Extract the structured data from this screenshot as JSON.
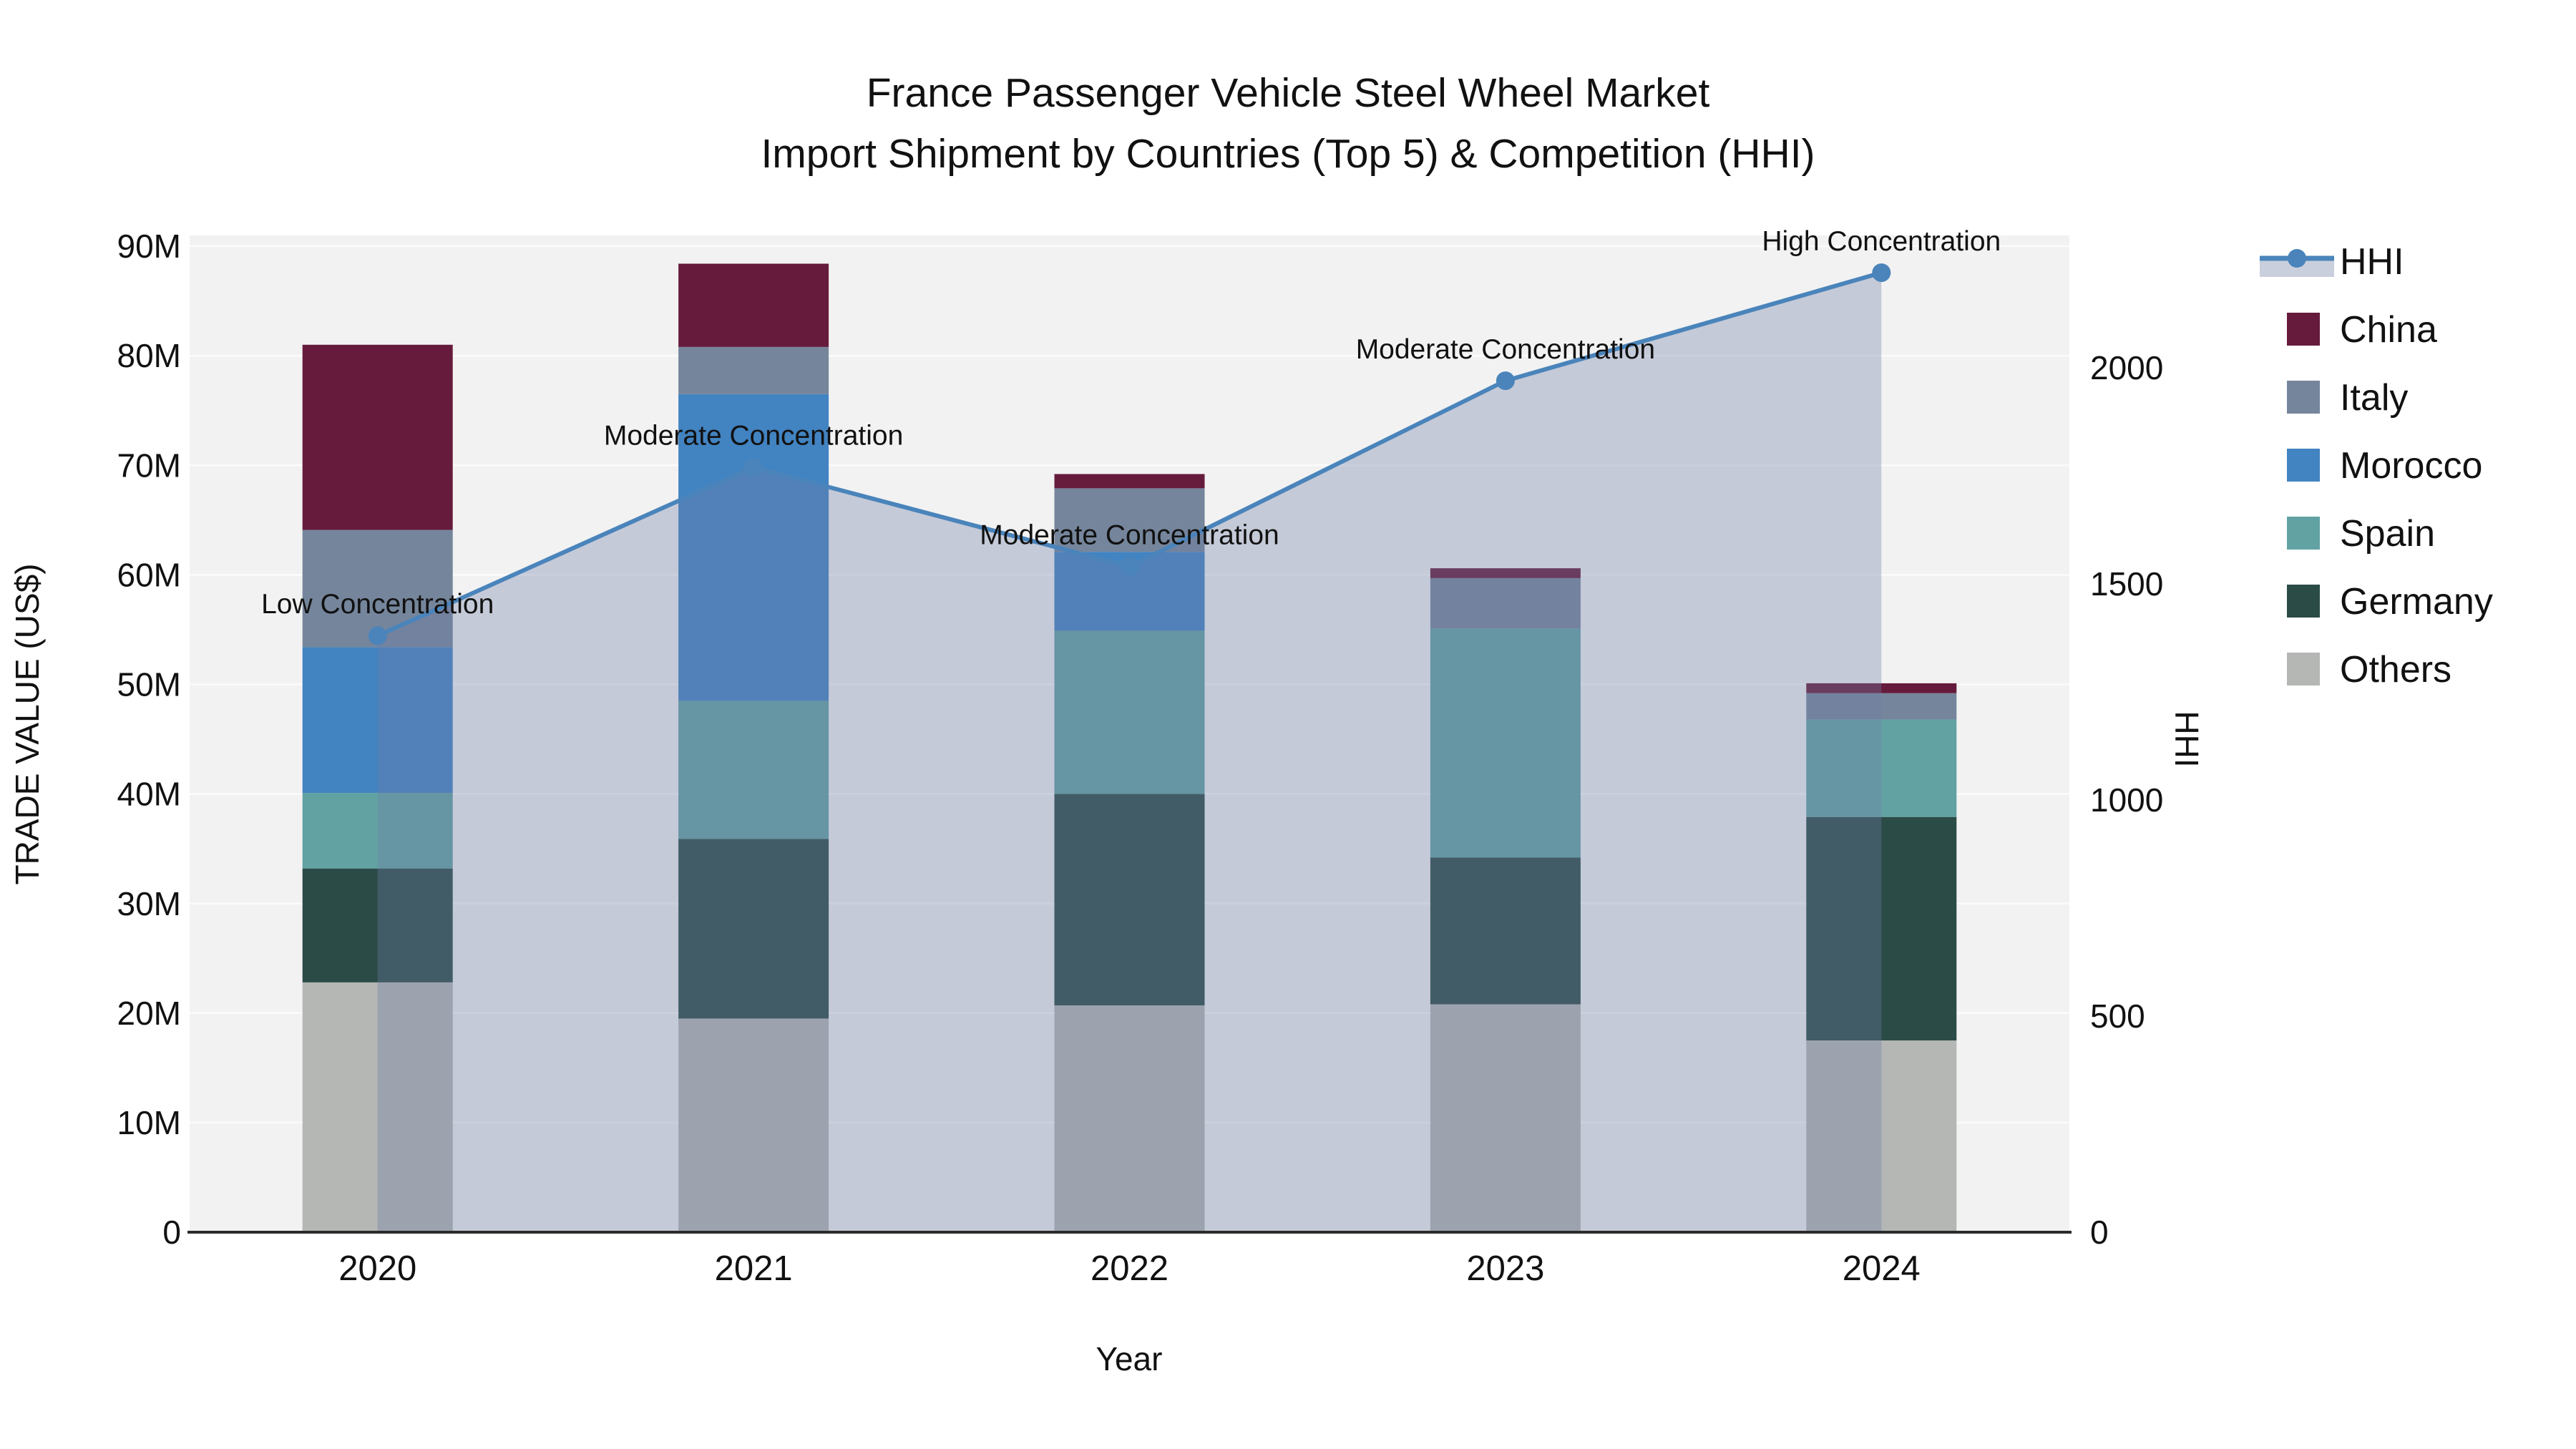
{
  "title": {
    "line1": "France Passenger Vehicle Steel Wheel Market",
    "line2": "Import Shipment by Countries (Top 5) & Competition (HHI)"
  },
  "axes": {
    "left": {
      "title": "TRADE VALUE (US$)",
      "tick_labels": [
        "0",
        "10M",
        "20M",
        "30M",
        "40M",
        "50M",
        "60M",
        "70M",
        "80M",
        "90M"
      ],
      "tick_values_millions": [
        0,
        10,
        20,
        30,
        40,
        50,
        60,
        70,
        80,
        90
      ]
    },
    "right": {
      "title": "HHI",
      "tick_labels": [
        "0",
        "500",
        "1000",
        "1500",
        "2000"
      ],
      "tick_values": [
        0,
        500,
        1000,
        1500,
        2000
      ]
    },
    "x": {
      "title": "Year",
      "categories": [
        "2020",
        "2021",
        "2022",
        "2023",
        "2024"
      ]
    }
  },
  "legend": {
    "entries": [
      {
        "label": "HHI",
        "kind": "line-area",
        "color": "#4A84BB",
        "area_color": "#C9CFDC"
      },
      {
        "label": "China",
        "kind": "swatch",
        "color": "#661B3C"
      },
      {
        "label": "Italy",
        "kind": "swatch",
        "color": "#75859B"
      },
      {
        "label": "Morocco",
        "kind": "swatch",
        "color": "#4283C1"
      },
      {
        "label": "Spain",
        "kind": "swatch",
        "color": "#62A2A3"
      },
      {
        "label": "Germany",
        "kind": "swatch",
        "color": "#2B4B47"
      },
      {
        "label": "Others",
        "kind": "swatch",
        "color": "#B4B7B4"
      }
    ]
  },
  "chart_data": {
    "type": "combo-stacked-bar-line",
    "categories": [
      "2020",
      "2021",
      "2022",
      "2023",
      "2024"
    ],
    "values_unit": "million US$",
    "stack_order_bottom_to_top": [
      "Others",
      "Germany",
      "Spain",
      "Morocco",
      "Italy",
      "China"
    ],
    "series": [
      {
        "name": "Others",
        "type": "bar",
        "color": "#B4B7B4",
        "values": [
          22.8,
          19.5,
          20.7,
          20.8,
          17.5
        ]
      },
      {
        "name": "Germany",
        "type": "bar",
        "color": "#2B4B47",
        "values": [
          10.4,
          16.4,
          19.3,
          13.4,
          20.4
        ]
      },
      {
        "name": "Spain",
        "type": "bar",
        "color": "#62A2A3",
        "values": [
          6.9,
          12.6,
          14.9,
          20.9,
          8.9
        ]
      },
      {
        "name": "Morocco",
        "type": "bar",
        "color": "#4283C1",
        "values": [
          13.3,
          28.0,
          7.2,
          0,
          0
        ]
      },
      {
        "name": "Italy",
        "type": "bar",
        "color": "#75859B",
        "values": [
          10.7,
          4.3,
          5.8,
          4.6,
          2.4
        ]
      },
      {
        "name": "China",
        "type": "bar",
        "color": "#661B3C",
        "values": [
          16.9,
          7.6,
          1.3,
          0.9,
          0.9
        ]
      }
    ],
    "bar_totals_millions": [
      81.0,
      88.4,
      69.2,
      60.6,
      50.1
    ],
    "line_series": {
      "name": "HHI",
      "type": "line",
      "color": "#4A84BB",
      "area_fill": "rgba(112,126,168,0.34)",
      "values": [
        1380,
        1770,
        1540,
        1970,
        2220
      ]
    },
    "annotations": [
      "Low Concentration",
      "Moderate Concentration",
      "Moderate Concentration",
      "Moderate Concentration",
      "High Concentration"
    ],
    "ylim_left_millions": [
      0,
      91
    ],
    "ylim_right_hhi": [
      0,
      2310
    ],
    "grid": "horizontal-white"
  },
  "style": {
    "plot_bg": "#F2F2F2",
    "figure_bg": "#FFFFFF",
    "grid_color": "#FBFBFB",
    "axis_line_color": "#2B2B2B",
    "text_color": "#111111"
  }
}
